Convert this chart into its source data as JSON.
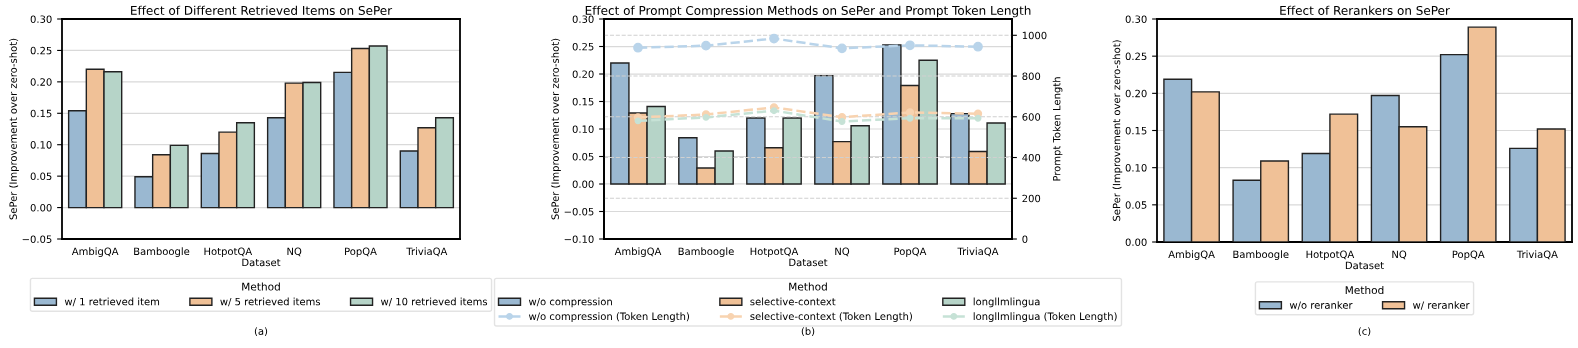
{
  "chart_data": [
    {
      "type": "bar",
      "title": "Effect of Different Retrieved Items on SePer",
      "xlabel": "Dataset",
      "ylabel": "SePer (Improvement over zero-shot)",
      "legend_title": "Method",
      "legend": "bottom",
      "grid": "y",
      "categories": [
        "AmbigQA",
        "Bamboogle",
        "HotpotQA",
        "NQ",
        "PopQA",
        "TriviaQA"
      ],
      "ylim": [
        -0.05,
        0.3
      ],
      "yticks": [
        {
          "value": -0.05,
          "label": "−0.05"
        },
        {
          "value": 0,
          "label": "0.00"
        },
        {
          "value": 0.05,
          "label": "0.05"
        },
        {
          "value": 0.1,
          "label": "0.10"
        },
        {
          "value": 0.15,
          "label": "0.15"
        },
        {
          "value": 0.2,
          "label": "0.20"
        },
        {
          "value": 0.25,
          "label": "0.25"
        },
        {
          "value": 0.3,
          "label": "0.30"
        }
      ],
      "series": [
        {
          "name": "w/ 1 retrieved item",
          "color": "#9ab8d1",
          "values": [
            0.154,
            0.049,
            0.086,
            0.143,
            0.215,
            0.09
          ]
        },
        {
          "name": "w/ 5 retrieved items",
          "color": "#f0c197",
          "values": [
            0.22,
            0.084,
            0.12,
            0.198,
            0.253,
            0.127
          ]
        },
        {
          "name": "w/ 10 retrieved items",
          "color": "#b6d4c8",
          "values": [
            0.216,
            0.099,
            0.135,
            0.199,
            0.257,
            0.143
          ]
        }
      ],
      "annotations": [
        "(a)"
      ]
    },
    {
      "type": "bar",
      "title": "Effect of Prompt Compression Methods on SePer and Prompt Token Length",
      "xlabel": "Dataset",
      "ylabel": "SePer (Improvement over zero-shot)",
      "y2label": "Prompt Token Length",
      "legend_title": "Method",
      "legend": "bottom",
      "grid": "y",
      "marker": "circle",
      "line_style": "dashed",
      "categories": [
        "AmbigQA",
        "Bamboogle",
        "HotpotQA",
        "NQ",
        "PopQA",
        "TriviaQA"
      ],
      "ylim": [
        -0.1,
        0.3
      ],
      "yticks": [
        {
          "value": -0.1,
          "label": "−0.10"
        },
        {
          "value": -0.05,
          "label": "−0.05"
        },
        {
          "value": 0,
          "label": "0.00"
        },
        {
          "value": 0.05,
          "label": "0.05"
        },
        {
          "value": 0.1,
          "label": "0.10"
        },
        {
          "value": 0.15,
          "label": "0.15"
        },
        {
          "value": 0.2,
          "label": "0.20"
        },
        {
          "value": 0.25,
          "label": "0.25"
        },
        {
          "value": 0.3,
          "label": "0.30"
        }
      ],
      "y2lim": [
        0,
        1080
      ],
      "y2ticks": [
        0,
        200,
        400,
        600,
        800,
        1000
      ],
      "series": [
        {
          "name": "w/o compression",
          "color": "#9ab8d1",
          "values": [
            0.22,
            0.084,
            0.12,
            0.197,
            0.253,
            0.128
          ]
        },
        {
          "name": "w/o compression (Token Length)",
          "type": "line",
          "axis": "y2",
          "color": "#b9d4ea",
          "values": [
            939,
            949,
            984,
            936,
            951,
            944
          ]
        },
        {
          "name": "selective-context",
          "color": "#f0c197",
          "values": [
            0.129,
            0.029,
            0.066,
            0.077,
            0.179,
            0.059
          ]
        },
        {
          "name": "selective-context (Token Length)",
          "type": "line",
          "axis": "y2",
          "color": "#f8d3b0",
          "values": [
            597,
            611,
            646,
            598,
            621,
            615
          ]
        },
        {
          "name": "longllmlingua",
          "color": "#b6d4c8",
          "values": [
            0.141,
            0.06,
            0.12,
            0.106,
            0.225,
            0.111
          ]
        },
        {
          "name": "longllmlingua (Token Length)",
          "type": "line",
          "axis": "y2",
          "color": "#c6e2d6",
          "values": [
            580,
            597,
            630,
            577,
            593,
            593
          ]
        }
      ],
      "annotations": [
        "(b)"
      ]
    },
    {
      "type": "bar",
      "title": "Effect of Rerankers on SePer",
      "xlabel": "Dataset",
      "ylabel": "SePer (Improvement over zero-shot)",
      "legend_title": "Method",
      "legend": "bottom",
      "grid": "y",
      "categories": [
        "AmbigQA",
        "Bamboogle",
        "HotpotQA",
        "NQ",
        "PopQA",
        "TriviaQA"
      ],
      "ylim": [
        0,
        0.3
      ],
      "yticks": [
        {
          "value": 0,
          "label": "0.00"
        },
        {
          "value": 0.05,
          "label": "0.05"
        },
        {
          "value": 0.1,
          "label": "0.10"
        },
        {
          "value": 0.15,
          "label": "0.15"
        },
        {
          "value": 0.2,
          "label": "0.20"
        },
        {
          "value": 0.25,
          "label": "0.25"
        },
        {
          "value": 0.3,
          "label": "0.30"
        }
      ],
      "series": [
        {
          "name": "w/o reranker",
          "color": "#9ab8d1",
          "values": [
            0.219,
            0.083,
            0.119,
            0.197,
            0.252,
            0.126
          ]
        },
        {
          "name": "w/ reranker",
          "color": "#f0c197",
          "values": [
            0.202,
            0.109,
            0.172,
            0.155,
            0.289,
            0.152
          ]
        }
      ],
      "annotations": [
        "(c)"
      ]
    }
  ]
}
